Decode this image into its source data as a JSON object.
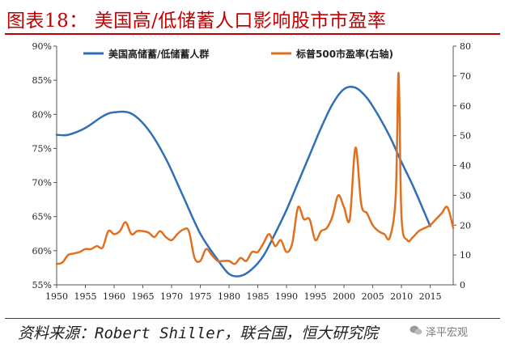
{
  "header": {
    "title": "图表18：   美国高/低储蓄人口影响股市市盈率"
  },
  "footer": {
    "source": "资料来源：Robert Shiller，联合国，恒大研究院",
    "watermark": "泽平宏观"
  },
  "colors": {
    "accent": "#c00000",
    "series_blue": "#2f6fb7",
    "series_orange": "#e07020"
  },
  "chart_data": {
    "type": "line",
    "title": "",
    "xlabel": "",
    "ylabel": "",
    "x_ticks": [
      "1950",
      "1955",
      "1960",
      "1965",
      "1970",
      "1975",
      "1980",
      "1985",
      "1990",
      "1995",
      "2000",
      "2005",
      "2010",
      "2015"
    ],
    "xlim": [
      1950,
      2019
    ],
    "ylim_left": [
      55,
      90
    ],
    "ylim_right": [
      0,
      80
    ],
    "left_ticks": [
      "55%",
      "60%",
      "65%",
      "70%",
      "75%",
      "80%",
      "85%",
      "90%"
    ],
    "right_ticks": [
      "0",
      "10",
      "20",
      "30",
      "40",
      "50",
      "60",
      "70",
      "80"
    ],
    "legend_placement": "top",
    "grid": false,
    "series": [
      {
        "name": "美国高储蓄/低储蓄人群",
        "axis": "left",
        "x": [
          1950,
          1952,
          1955,
          1958,
          1960,
          1963,
          1966,
          1969,
          1972,
          1975,
          1978,
          1980,
          1982,
          1984,
          1986,
          1988,
          1990,
          1992,
          1994,
          1996,
          1998,
          2000,
          2002,
          2004,
          2006,
          2008,
          2010,
          2012,
          2014,
          2015
        ],
        "y": [
          77.0,
          77.0,
          78.0,
          79.7,
          80.3,
          80.1,
          77.7,
          73.5,
          68.0,
          62.5,
          58.7,
          56.6,
          56.3,
          57.3,
          59.3,
          62.5,
          66.0,
          70.0,
          74.0,
          78.0,
          81.5,
          83.7,
          83.9,
          82.4,
          79.8,
          76.7,
          73.0,
          69.5,
          65.6,
          63.6
        ]
      },
      {
        "name": "标普500市盈率(右轴)",
        "axis": "right",
        "x": [
          1950,
          1951,
          1952,
          1953,
          1954,
          1955,
          1956,
          1957,
          1958,
          1959,
          1960,
          1961,
          1962,
          1963,
          1964,
          1965,
          1966,
          1967,
          1968,
          1969,
          1970,
          1971,
          1972,
          1973,
          1974,
          1975,
          1976,
          1977,
          1978,
          1979,
          1980,
          1981,
          1982,
          1983,
          1984,
          1985,
          1986,
          1987,
          1988,
          1989,
          1990,
          1991,
          1992,
          1993,
          1994,
          1995,
          1996,
          1997,
          1998,
          1999,
          2000,
          2001,
          2002,
          2003,
          2004,
          2005,
          2006,
          2007,
          2008,
          2009,
          2009.5,
          2010,
          2011,
          2012,
          2013,
          2014,
          2015,
          2016,
          2017,
          2018,
          2019
        ],
        "y": [
          7,
          7.5,
          10,
          10.5,
          11,
          12,
          12,
          13,
          12.5,
          18,
          17,
          18,
          21,
          17,
          18,
          18,
          17.5,
          16,
          18,
          16,
          15,
          17,
          18.5,
          18,
          9,
          8,
          12,
          10,
          8,
          8,
          8,
          7,
          9,
          8,
          11,
          11,
          14,
          17,
          13,
          15,
          11,
          14,
          26,
          22,
          22,
          15,
          18,
          19,
          23,
          30,
          26,
          22,
          46,
          27,
          24,
          20,
          18,
          17,
          16,
          30,
          71,
          23,
          15,
          16,
          18,
          19,
          20,
          22,
          24,
          26,
          19
        ]
      }
    ]
  }
}
